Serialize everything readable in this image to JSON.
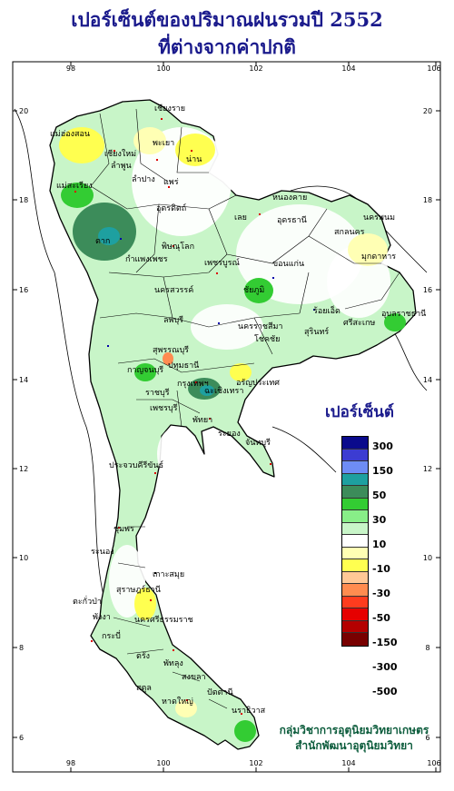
{
  "title": {
    "line1": "เปอร์เซ็นต์ของปริมาณฝนรวมปี 2552",
    "line2": "ที่ต่างจากค่าปกติ"
  },
  "axes": {
    "x_ticks": [
      "98",
      "100",
      "102",
      "104",
      "106"
    ],
    "y_ticks": [
      "20",
      "18",
      "16",
      "14",
      "12",
      "10",
      "8",
      "6"
    ]
  },
  "legend": {
    "title": "เปอร์เซ็นต์",
    "labels": [
      "300",
      "150",
      "50",
      "30",
      "10",
      "-10",
      "-30",
      "-50",
      "-150",
      "-300",
      "-500"
    ],
    "colors": [
      "#0a0a8c",
      "#3c3cd2",
      "#6e8cf5",
      "#1ea0a0",
      "#3c8c5a",
      "#33cc33",
      "#88ee88",
      "#c8f5c8",
      "#ffffff",
      "#ffffb4",
      "#ffff50",
      "#ffc896",
      "#ff8c50",
      "#ff3c1e",
      "#e60000",
      "#b40000",
      "#780000"
    ]
  },
  "places": [
    "เชียงราย",
    "แม่ฮ่องสอน",
    "เชียงใหม่",
    "พะเยา",
    "น่าน",
    "ลำพูน",
    "ลำปาง",
    "แพร่",
    "แม่สะเรียง",
    "อุตรดิตถ์",
    "ตาก",
    "พิษณุโลก",
    "กำแพงเพชร",
    "เพชรบูรณ์",
    "เลย",
    "หนองคาย",
    "อุดรธานี",
    "นครพนม",
    "สกลนคร",
    "มุกดาหาร",
    "ขอนแก่น",
    "นครสวรรค์",
    "ชัยภูมิ",
    "ลพบุรี",
    "นครราชสีมา",
    "โชคชัย",
    "สุรินทร์",
    "ศรีสะเกษ",
    "อุบลราชธานี",
    "ร้อยเอ็ด",
    "สุพรรณบุรี",
    "กาญจนบุรี",
    "ปทุมธานี",
    "อรัญประเทศ",
    "ราชบุรี",
    "กรุงเทพฯ",
    "ฉะเชิงเทรา",
    "เพชรบุรี",
    "พัทยา",
    "ระยอง",
    "จันทบุรี",
    "ประจวบคีรีขันธ์",
    "ชุมพร",
    "ระนอง",
    "เกาะสมุย",
    "สุราษฎร์ธานี",
    "ตะกั่วป่า",
    "พังงา",
    "นครศรีธรรมราช",
    "กระบี่",
    "ตรัง",
    "พัทลุง",
    "สงขลา",
    "หาดใหญ่",
    "สตูล",
    "ปัตตานี",
    "นราธิวาส"
  ],
  "credit": {
    "line1": "กลุ่มวิชาการอุตุนิยมวิทยาเกษตร",
    "line2": "สำนักพัฒนาอุตุนิยมวิทยา"
  }
}
